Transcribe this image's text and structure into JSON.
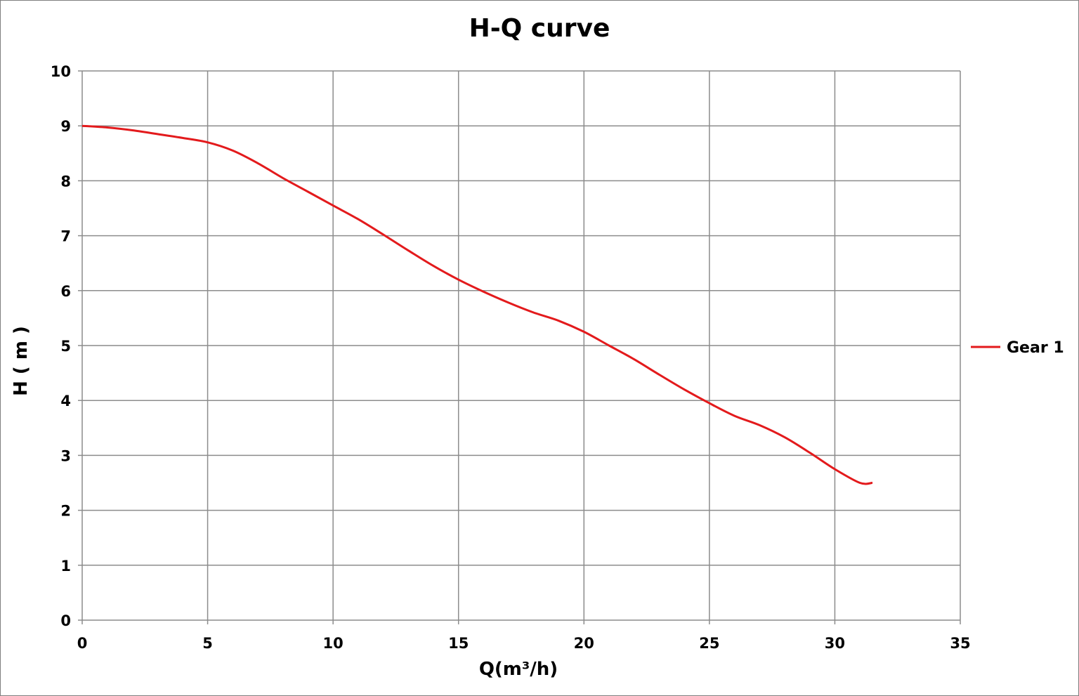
{
  "chart_data": {
    "type": "line",
    "title": "H-Q  curve",
    "xlabel": "Q(m³/h)",
    "ylabel": "H ( m )",
    "xlim": [
      0,
      35
    ],
    "ylim": [
      0,
      10
    ],
    "x_ticks": [
      "0",
      "5",
      "10",
      "15",
      "20",
      "25",
      "30",
      "35"
    ],
    "y_ticks": [
      "0",
      "1",
      "2",
      "3",
      "4",
      "5",
      "6",
      "7",
      "8",
      "9",
      "10"
    ],
    "grid": true,
    "legend_position": "right",
    "series": [
      {
        "name": "Gear 1",
        "color": "#e31a1c",
        "x": [
          0,
          1,
          2,
          3,
          4,
          5,
          6,
          7,
          8,
          9,
          10,
          11,
          12,
          13,
          14,
          15,
          16,
          17,
          18,
          19,
          20,
          21,
          22,
          23,
          24,
          25,
          26,
          27,
          28,
          29,
          30,
          31,
          31.5
        ],
        "y": [
          9.0,
          8.97,
          8.92,
          8.85,
          8.78,
          8.7,
          8.55,
          8.32,
          8.05,
          7.8,
          7.55,
          7.3,
          7.02,
          6.73,
          6.45,
          6.2,
          5.98,
          5.78,
          5.6,
          5.45,
          5.25,
          5.0,
          4.75,
          4.47,
          4.2,
          3.95,
          3.72,
          3.55,
          3.33,
          3.05,
          2.75,
          2.5,
          2.5
        ]
      }
    ]
  }
}
